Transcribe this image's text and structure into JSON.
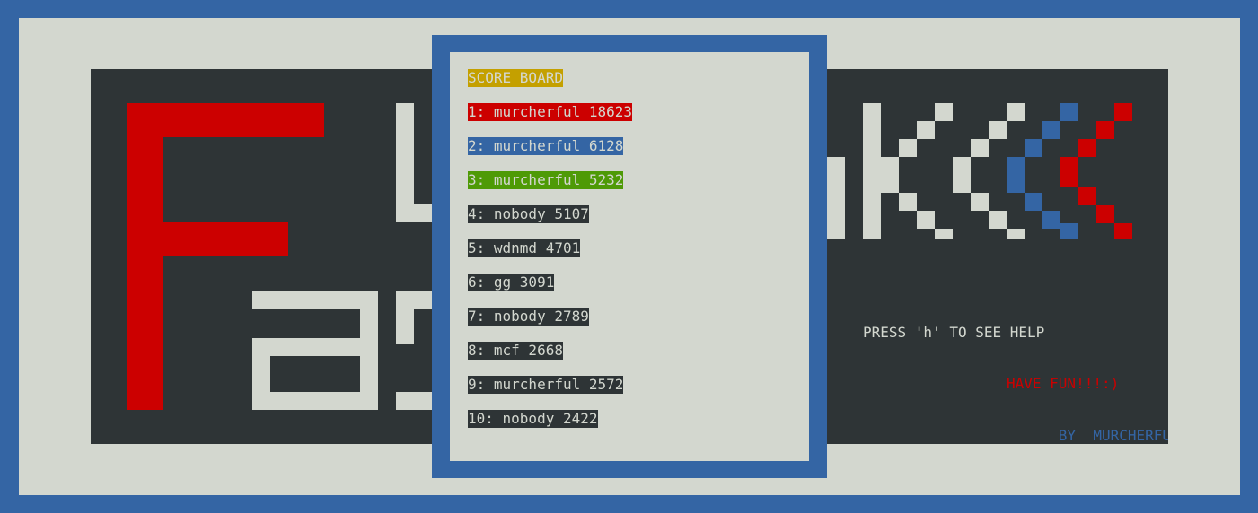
{
  "game": {
    "title_letters": [
      "F",
      "a",
      "s",
      "t",
      "b",
      "l",
      "o",
      "c",
      "k",
      "<<<"
    ]
  },
  "colors": {
    "background_blue": "#3465a4",
    "frame_gray": "#d3d7cf",
    "panel_dark": "#2e3436",
    "red": "#cc0000",
    "blue": "#3465a4",
    "green": "#4e9a06",
    "gold": "#c4a000",
    "light_gray": "#d3d7cf"
  },
  "info": {
    "help_hint": "PRESS 'h' TO SEE HELP",
    "have_fun": "HAVE FUN!!!:)",
    "by_label": "BY",
    "author": "MURCHERFUL"
  },
  "scoreboard": {
    "title": "SCORE BOARD",
    "entries": [
      {
        "rank": "1",
        "name": "murcherful",
        "score": "18623",
        "text": "1: murcherful 18623"
      },
      {
        "rank": "2",
        "name": "murcherful",
        "score": "6128",
        "text": "2: murcherful 6128"
      },
      {
        "rank": "3",
        "name": "murcherful",
        "score": "5232",
        "text": "3: murcherful 5232"
      },
      {
        "rank": "4",
        "name": "nobody",
        "score": "5107",
        "text": "4: nobody 5107"
      },
      {
        "rank": "5",
        "name": "wdnmd",
        "score": "4701",
        "text": "5: wdnmd 4701"
      },
      {
        "rank": "6",
        "name": "gg",
        "score": "3091",
        "text": "6: gg 3091"
      },
      {
        "rank": "7",
        "name": "nobody",
        "score": "2789",
        "text": "7: nobody 2789"
      },
      {
        "rank": "8",
        "name": "mcf",
        "score": "2668",
        "text": "8: mcf 2668"
      },
      {
        "rank": "9",
        "name": "murcherful",
        "score": "2572",
        "text": "9: murcherful 2572"
      },
      {
        "rank": "10",
        "name": "nobody",
        "score": "2422",
        "text": "10: nobody 2422"
      }
    ]
  }
}
